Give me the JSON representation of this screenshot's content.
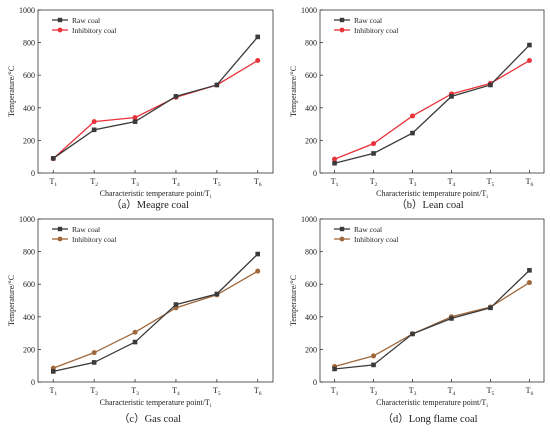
{
  "chart_data": [
    {
      "type": "line",
      "caption": "（a）Meagre coal",
      "xlabel": "Characteristic temperature point/T",
      "xlabel_sub": "i",
      "ylabel": "Temperature/°C",
      "ylim": [
        0,
        1000
      ],
      "yticks": [
        0,
        200,
        400,
        600,
        800,
        1000
      ],
      "categories": [
        "T",
        "T",
        "T",
        "T",
        "T",
        "T"
      ],
      "category_subs": [
        "1",
        "2",
        "3",
        "4",
        "5",
        "6"
      ],
      "legend": "top-left",
      "series": [
        {
          "name": "Raw coal",
          "values": [
            90,
            265,
            315,
            470,
            540,
            835
          ],
          "color": "#3a3a3a",
          "marker": "square"
        },
        {
          "name": "Inhibitory coal",
          "values": [
            88,
            315,
            340,
            465,
            540,
            690
          ],
          "color": "#e8333a",
          "marker": "circle"
        }
      ]
    },
    {
      "type": "line",
      "caption": "（b）Lean coal",
      "xlabel": "Characteristic temperature point/T",
      "xlabel_sub": "i",
      "ylabel": "Temperature/°C",
      "ylim": [
        0,
        1000
      ],
      "yticks": [
        0,
        200,
        400,
        600,
        800,
        1000
      ],
      "categories": [
        "T",
        "T",
        "T",
        "T",
        "T",
        "T"
      ],
      "category_subs": [
        "1",
        "2",
        "3",
        "4",
        "5",
        "6"
      ],
      "legend": "top-left",
      "series": [
        {
          "name": "Raw coal",
          "values": [
            60,
            120,
            245,
            470,
            540,
            785
          ],
          "color": "#3a3a3a",
          "marker": "square"
        },
        {
          "name": "Inhibitory coal",
          "values": [
            85,
            180,
            350,
            485,
            550,
            690
          ],
          "color": "#e8333a",
          "marker": "circle"
        }
      ]
    },
    {
      "type": "line",
      "caption": "（c）Gas coal",
      "xlabel": "Characteristic temperature point/T",
      "xlabel_sub": "i",
      "ylabel": "Temperature/°C",
      "ylim": [
        0,
        1000
      ],
      "yticks": [
        0,
        200,
        400,
        600,
        800,
        1000
      ],
      "categories": [
        "T",
        "T",
        "T",
        "T",
        "T",
        "T"
      ],
      "category_subs": [
        "1",
        "2",
        "3",
        "4",
        "5",
        "6"
      ],
      "legend": "top-left",
      "series": [
        {
          "name": "Raw coal",
          "values": [
            65,
            120,
            245,
            475,
            540,
            785
          ],
          "color": "#3a3a3a",
          "marker": "square"
        },
        {
          "name": "Inhibitory coal",
          "values": [
            85,
            180,
            305,
            455,
            535,
            680
          ],
          "color": "#a0673a",
          "marker": "circle"
        }
      ]
    },
    {
      "type": "line",
      "caption": "（d）Long flame coal",
      "xlabel": "Characteristic temperature point/T",
      "xlabel_sub": "i",
      "ylabel": "Temperature/°C",
      "ylim": [
        0,
        1000
      ],
      "yticks": [
        0,
        200,
        400,
        600,
        800,
        1000
      ],
      "categories": [
        "T",
        "T",
        "T",
        "T",
        "T",
        "T"
      ],
      "category_subs": [
        "1",
        "2",
        "3",
        "4",
        "5",
        "6"
      ],
      "legend": "top-left",
      "series": [
        {
          "name": "Raw coal",
          "values": [
            80,
            105,
            295,
            390,
            455,
            685
          ],
          "color": "#3a3a3a",
          "marker": "square"
        },
        {
          "name": "Inhibitory coal",
          "values": [
            95,
            160,
            295,
            400,
            460,
            610
          ],
          "color": "#a0673a",
          "marker": "circle"
        }
      ]
    }
  ]
}
